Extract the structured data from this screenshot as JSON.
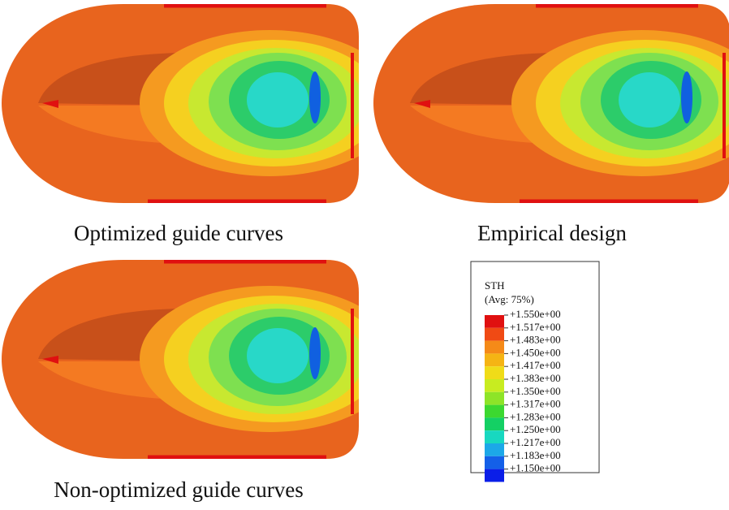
{
  "panels": [
    {
      "caption": "Optimized guide curves"
    },
    {
      "caption": "Empirical design"
    },
    {
      "caption": "Non-optimized guide curves"
    }
  ],
  "legend": {
    "title": "STH",
    "subtitle": "(Avg: 75%)",
    "labels": [
      "+1.550e+00",
      "+1.517e+00",
      "+1.483e+00",
      "+1.450e+00",
      "+1.417e+00",
      "+1.383e+00",
      "+1.350e+00",
      "+1.317e+00",
      "+1.283e+00",
      "+1.250e+00",
      "+1.217e+00",
      "+1.183e+00",
      "+1.150e+00"
    ],
    "colors": [
      "#e01010",
      "#f04a14",
      "#f58a18",
      "#f5b414",
      "#f0dc18",
      "#c8ec20",
      "#8ee428",
      "#3cd830",
      "#14d064",
      "#18d8c0",
      "#1ca8e8",
      "#1460e8",
      "#0a1ee8"
    ]
  }
}
